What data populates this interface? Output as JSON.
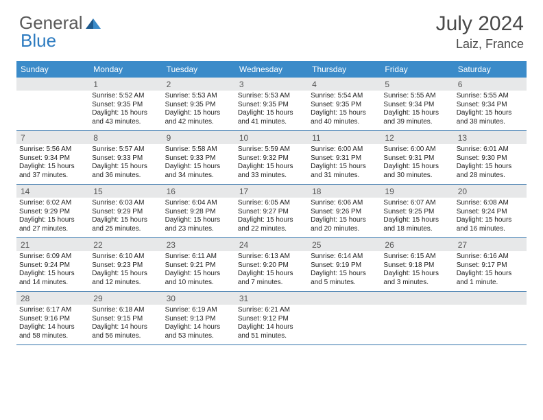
{
  "brand": {
    "word1": "General",
    "word2": "Blue"
  },
  "title": {
    "month_year": "July 2024",
    "location": "Laiz, France"
  },
  "colors": {
    "header_bg": "#3b8bc9",
    "daynum_bg": "#e7e8e9",
    "row_border": "#2d6fa8",
    "logo_gray": "#5a5a5a",
    "logo_blue": "#2d7bc0"
  },
  "days_of_week": [
    "Sunday",
    "Monday",
    "Tuesday",
    "Wednesday",
    "Thursday",
    "Friday",
    "Saturday"
  ],
  "weeks": [
    [
      {
        "n": "",
        "sunrise": "",
        "sunset": "",
        "daylight": ""
      },
      {
        "n": "1",
        "sunrise": "Sunrise: 5:52 AM",
        "sunset": "Sunset: 9:35 PM",
        "daylight": "Daylight: 15 hours and 43 minutes."
      },
      {
        "n": "2",
        "sunrise": "Sunrise: 5:53 AM",
        "sunset": "Sunset: 9:35 PM",
        "daylight": "Daylight: 15 hours and 42 minutes."
      },
      {
        "n": "3",
        "sunrise": "Sunrise: 5:53 AM",
        "sunset": "Sunset: 9:35 PM",
        "daylight": "Daylight: 15 hours and 41 minutes."
      },
      {
        "n": "4",
        "sunrise": "Sunrise: 5:54 AM",
        "sunset": "Sunset: 9:35 PM",
        "daylight": "Daylight: 15 hours and 40 minutes."
      },
      {
        "n": "5",
        "sunrise": "Sunrise: 5:55 AM",
        "sunset": "Sunset: 9:34 PM",
        "daylight": "Daylight: 15 hours and 39 minutes."
      },
      {
        "n": "6",
        "sunrise": "Sunrise: 5:55 AM",
        "sunset": "Sunset: 9:34 PM",
        "daylight": "Daylight: 15 hours and 38 minutes."
      }
    ],
    [
      {
        "n": "7",
        "sunrise": "Sunrise: 5:56 AM",
        "sunset": "Sunset: 9:34 PM",
        "daylight": "Daylight: 15 hours and 37 minutes."
      },
      {
        "n": "8",
        "sunrise": "Sunrise: 5:57 AM",
        "sunset": "Sunset: 9:33 PM",
        "daylight": "Daylight: 15 hours and 36 minutes."
      },
      {
        "n": "9",
        "sunrise": "Sunrise: 5:58 AM",
        "sunset": "Sunset: 9:33 PM",
        "daylight": "Daylight: 15 hours and 34 minutes."
      },
      {
        "n": "10",
        "sunrise": "Sunrise: 5:59 AM",
        "sunset": "Sunset: 9:32 PM",
        "daylight": "Daylight: 15 hours and 33 minutes."
      },
      {
        "n": "11",
        "sunrise": "Sunrise: 6:00 AM",
        "sunset": "Sunset: 9:31 PM",
        "daylight": "Daylight: 15 hours and 31 minutes."
      },
      {
        "n": "12",
        "sunrise": "Sunrise: 6:00 AM",
        "sunset": "Sunset: 9:31 PM",
        "daylight": "Daylight: 15 hours and 30 minutes."
      },
      {
        "n": "13",
        "sunrise": "Sunrise: 6:01 AM",
        "sunset": "Sunset: 9:30 PM",
        "daylight": "Daylight: 15 hours and 28 minutes."
      }
    ],
    [
      {
        "n": "14",
        "sunrise": "Sunrise: 6:02 AM",
        "sunset": "Sunset: 9:29 PM",
        "daylight": "Daylight: 15 hours and 27 minutes."
      },
      {
        "n": "15",
        "sunrise": "Sunrise: 6:03 AM",
        "sunset": "Sunset: 9:29 PM",
        "daylight": "Daylight: 15 hours and 25 minutes."
      },
      {
        "n": "16",
        "sunrise": "Sunrise: 6:04 AM",
        "sunset": "Sunset: 9:28 PM",
        "daylight": "Daylight: 15 hours and 23 minutes."
      },
      {
        "n": "17",
        "sunrise": "Sunrise: 6:05 AM",
        "sunset": "Sunset: 9:27 PM",
        "daylight": "Daylight: 15 hours and 22 minutes."
      },
      {
        "n": "18",
        "sunrise": "Sunrise: 6:06 AM",
        "sunset": "Sunset: 9:26 PM",
        "daylight": "Daylight: 15 hours and 20 minutes."
      },
      {
        "n": "19",
        "sunrise": "Sunrise: 6:07 AM",
        "sunset": "Sunset: 9:25 PM",
        "daylight": "Daylight: 15 hours and 18 minutes."
      },
      {
        "n": "20",
        "sunrise": "Sunrise: 6:08 AM",
        "sunset": "Sunset: 9:24 PM",
        "daylight": "Daylight: 15 hours and 16 minutes."
      }
    ],
    [
      {
        "n": "21",
        "sunrise": "Sunrise: 6:09 AM",
        "sunset": "Sunset: 9:24 PM",
        "daylight": "Daylight: 15 hours and 14 minutes."
      },
      {
        "n": "22",
        "sunrise": "Sunrise: 6:10 AM",
        "sunset": "Sunset: 9:23 PM",
        "daylight": "Daylight: 15 hours and 12 minutes."
      },
      {
        "n": "23",
        "sunrise": "Sunrise: 6:11 AM",
        "sunset": "Sunset: 9:21 PM",
        "daylight": "Daylight: 15 hours and 10 minutes."
      },
      {
        "n": "24",
        "sunrise": "Sunrise: 6:13 AM",
        "sunset": "Sunset: 9:20 PM",
        "daylight": "Daylight: 15 hours and 7 minutes."
      },
      {
        "n": "25",
        "sunrise": "Sunrise: 6:14 AM",
        "sunset": "Sunset: 9:19 PM",
        "daylight": "Daylight: 15 hours and 5 minutes."
      },
      {
        "n": "26",
        "sunrise": "Sunrise: 6:15 AM",
        "sunset": "Sunset: 9:18 PM",
        "daylight": "Daylight: 15 hours and 3 minutes."
      },
      {
        "n": "27",
        "sunrise": "Sunrise: 6:16 AM",
        "sunset": "Sunset: 9:17 PM",
        "daylight": "Daylight: 15 hours and 1 minute."
      }
    ],
    [
      {
        "n": "28",
        "sunrise": "Sunrise: 6:17 AM",
        "sunset": "Sunset: 9:16 PM",
        "daylight": "Daylight: 14 hours and 58 minutes."
      },
      {
        "n": "29",
        "sunrise": "Sunrise: 6:18 AM",
        "sunset": "Sunset: 9:15 PM",
        "daylight": "Daylight: 14 hours and 56 minutes."
      },
      {
        "n": "30",
        "sunrise": "Sunrise: 6:19 AM",
        "sunset": "Sunset: 9:13 PM",
        "daylight": "Daylight: 14 hours and 53 minutes."
      },
      {
        "n": "31",
        "sunrise": "Sunrise: 6:21 AM",
        "sunset": "Sunset: 9:12 PM",
        "daylight": "Daylight: 14 hours and 51 minutes."
      },
      {
        "n": "",
        "sunrise": "",
        "sunset": "",
        "daylight": ""
      },
      {
        "n": "",
        "sunrise": "",
        "sunset": "",
        "daylight": ""
      },
      {
        "n": "",
        "sunrise": "",
        "sunset": "",
        "daylight": ""
      }
    ]
  ]
}
